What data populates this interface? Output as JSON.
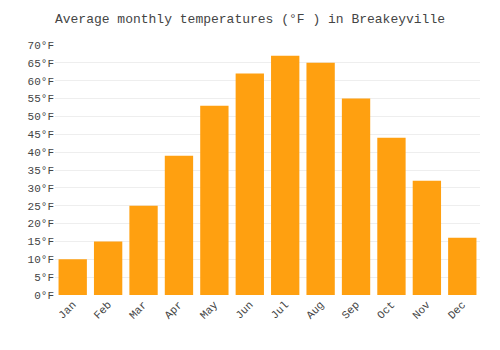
{
  "chart_data": {
    "type": "bar",
    "title": "Average monthly temperatures (°F ) in Breakeyville",
    "categories": [
      "Jan",
      "Feb",
      "Mar",
      "Apr",
      "May",
      "Jun",
      "Jul",
      "Aug",
      "Sep",
      "Oct",
      "Nov",
      "Dec"
    ],
    "values": [
      10,
      15,
      25,
      39,
      53,
      62,
      67,
      65,
      55,
      44,
      32,
      16
    ],
    "color": "#FFA010",
    "ylim": [
      0,
      70
    ],
    "yticks": [
      {
        "value": 0,
        "label": "0°F"
      },
      {
        "value": 5,
        "label": "5°F"
      },
      {
        "value": 10,
        "label": "10°F"
      },
      {
        "value": 15,
        "label": "15°F"
      },
      {
        "value": 20,
        "label": "20°F"
      },
      {
        "value": 25,
        "label": "25°F"
      },
      {
        "value": 30,
        "label": "30°F"
      },
      {
        "value": 35,
        "label": "35°F"
      },
      {
        "value": 40,
        "label": "40°F"
      },
      {
        "value": 45,
        "label": "45°F"
      },
      {
        "value": 50,
        "label": "50°F"
      },
      {
        "value": 55,
        "label": "55°F"
      },
      {
        "value": 60,
        "label": "60°F"
      },
      {
        "value": 65,
        "label": "65°F"
      },
      {
        "value": 70,
        "label": "70°F"
      }
    ],
    "grid": true
  }
}
